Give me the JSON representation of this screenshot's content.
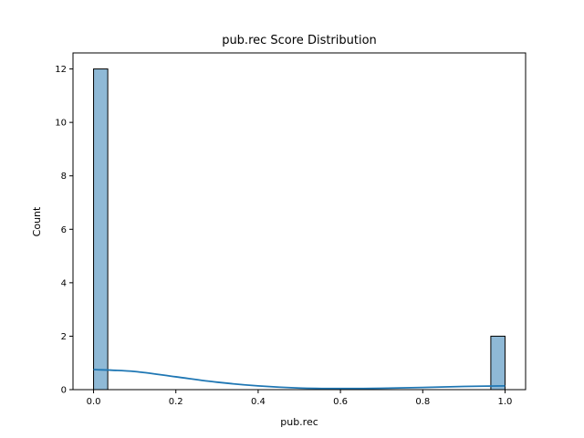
{
  "chart_data": {
    "type": "bar",
    "title": "pub.rec Score Distribution",
    "xlabel": "pub.rec",
    "ylabel": "Count",
    "xlim": [
      -0.05,
      1.05
    ],
    "ylim": [
      0,
      12.6
    ],
    "x_ticks": [
      0.0,
      0.2,
      0.4,
      0.6,
      0.8,
      1.0
    ],
    "x_tick_labels": [
      "0.0",
      "0.2",
      "0.4",
      "0.6",
      "0.8",
      "1.0"
    ],
    "y_ticks": [
      0,
      2,
      4,
      6,
      8,
      10,
      12
    ],
    "y_tick_labels": [
      "0",
      "2",
      "4",
      "6",
      "8",
      "10",
      "12"
    ],
    "grid": false,
    "bins": [
      {
        "x0": 0.0,
        "x1": 0.0345,
        "count": 12
      },
      {
        "x0": 0.9655,
        "x1": 1.0,
        "count": 2
      }
    ],
    "kde": {
      "x": [
        0.0,
        0.1,
        0.2,
        0.3,
        0.4,
        0.5,
        0.6,
        0.7,
        0.8,
        0.9,
        1.0
      ],
      "y": [
        0.75,
        0.68,
        0.48,
        0.28,
        0.14,
        0.06,
        0.04,
        0.05,
        0.08,
        0.12,
        0.14
      ]
    },
    "colors": {
      "bar_fill": "#8fb9d6",
      "bar_edge": "#000000",
      "kde_line": "#1f77b4"
    }
  }
}
